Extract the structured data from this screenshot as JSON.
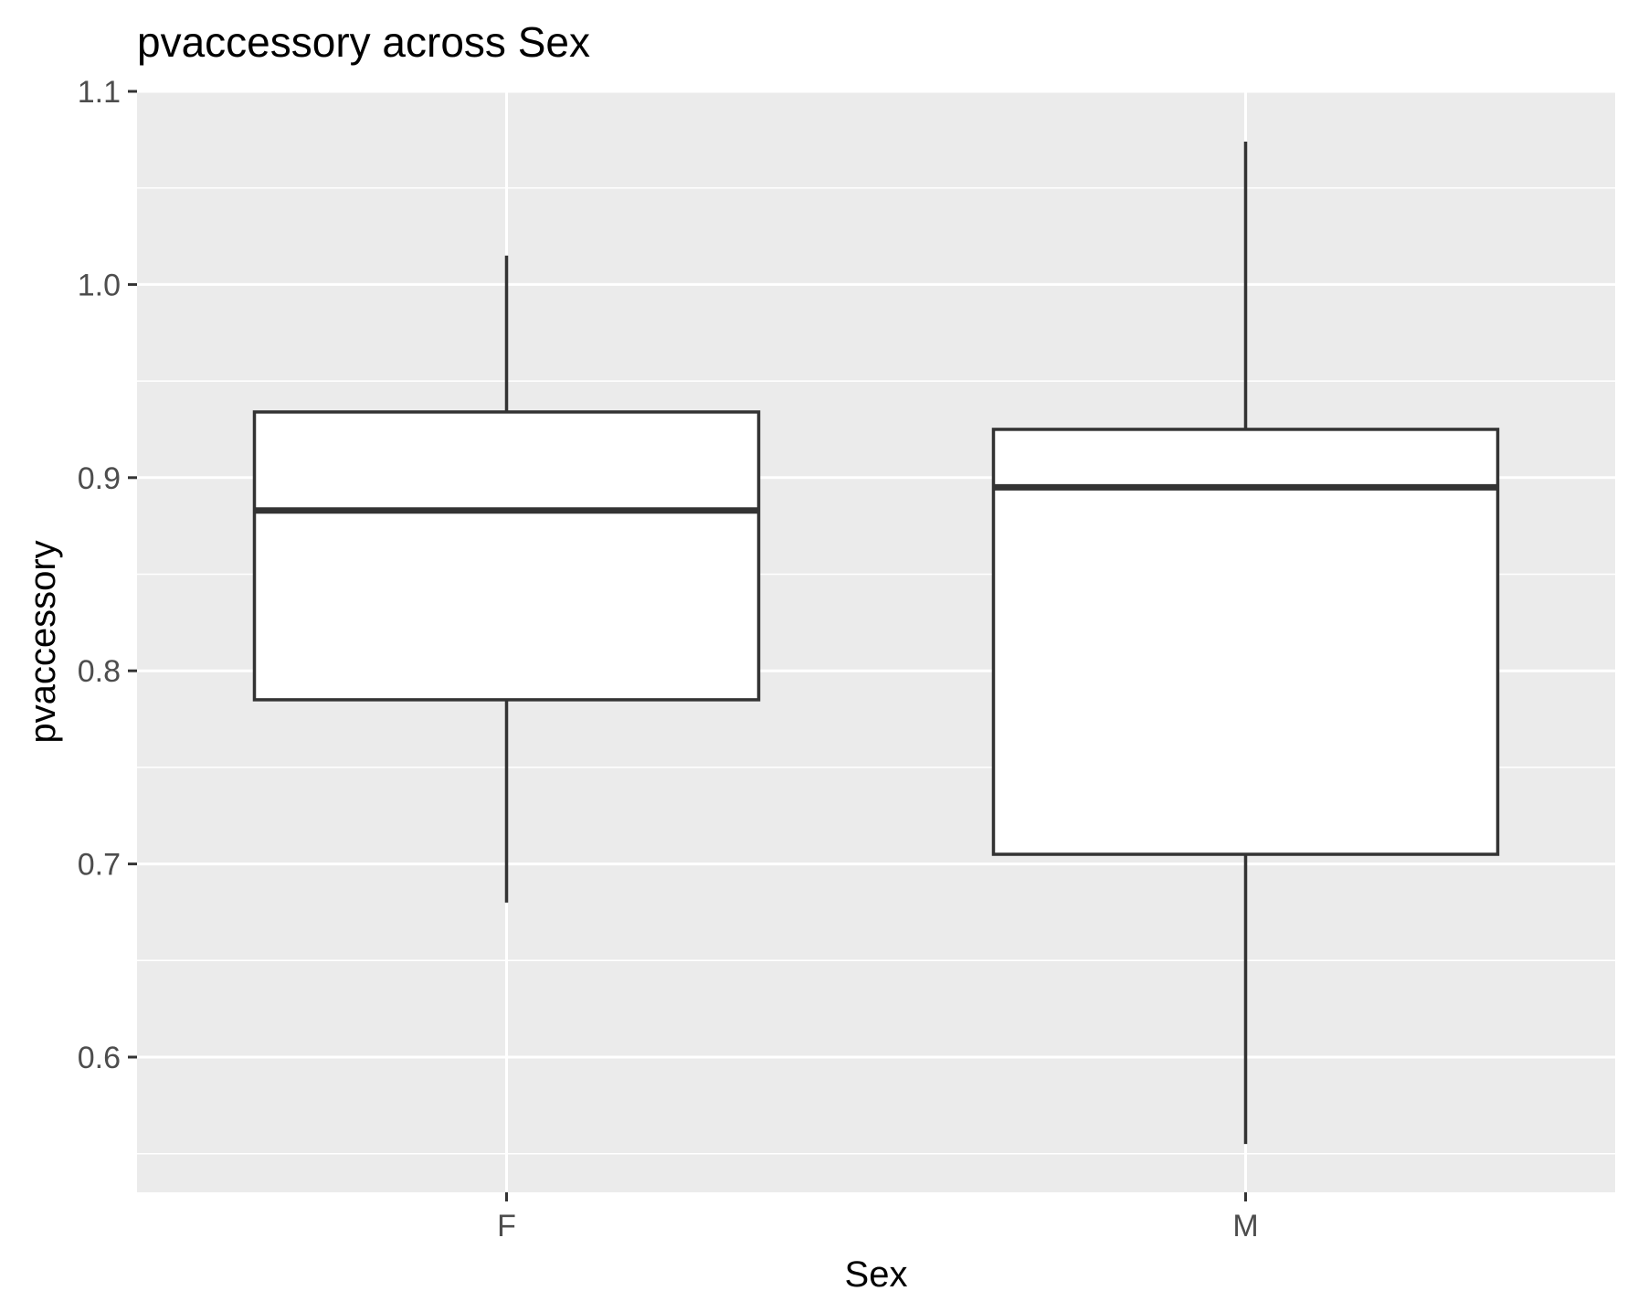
{
  "chart_data": {
    "type": "boxplot",
    "title": "pvaccessory across Sex",
    "xlabel": "Sex",
    "ylabel": "pvaccessory",
    "categories": [
      "F",
      "M"
    ],
    "boxes": [
      {
        "category": "F",
        "whisker_low": 0.68,
        "q1": 0.785,
        "median": 0.883,
        "q3": 0.934,
        "whisker_high": 1.015
      },
      {
        "category": "M",
        "whisker_low": 0.555,
        "q1": 0.705,
        "median": 0.895,
        "q3": 0.925,
        "whisker_high": 1.074
      }
    ],
    "ylim": [
      0.545,
      1.1
    ],
    "yticks": [
      0.6,
      0.7,
      0.8,
      0.9,
      1.0,
      1.1
    ],
    "ytick_labels": [
      "0.6",
      "0.7",
      "0.8",
      "0.9",
      "1.0",
      "1.1"
    ],
    "grid": true,
    "colors": {
      "panel_background": "#ebebeb",
      "grid_line": "#ffffff",
      "box_fill": "#ffffff",
      "box_outline": "#333333",
      "tick_label": "#4d4d4d",
      "tick_mark": "#333333"
    }
  }
}
